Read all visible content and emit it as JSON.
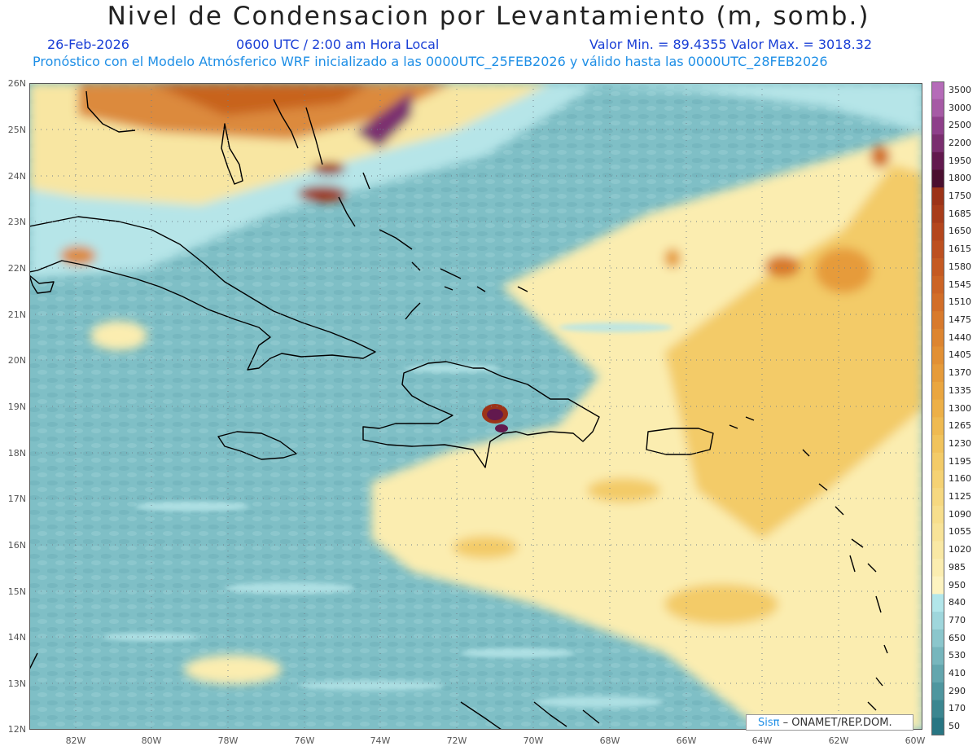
{
  "header": {
    "title": "Nivel de Condensacion por Levantamiento (m, somb.)",
    "date": "26-Feb-2026",
    "time": "0600 UTC / 2:00 am Hora Local",
    "minmax": "Valor Min. = 89.4355   Valor Max. = 3018.32",
    "forecast": "Pronóstico con el Modelo Atmósferico WRF inicializado a las 0000UTC_25FEB2026 y válido hasta las  0000UTC_28FEB2026"
  },
  "axes": {
    "lat_labels": [
      "26N",
      "25N",
      "24N",
      "23N",
      "22N",
      "21N",
      "20N",
      "19N",
      "18N",
      "17N",
      "16N",
      "15N",
      "14N",
      "13N",
      "12N"
    ],
    "lon_labels": [
      "82W",
      "80W",
      "78W",
      "76W",
      "74W",
      "72W",
      "70W",
      "68W",
      "66W",
      "64W",
      "62W",
      "60W"
    ]
  },
  "colorbar": {
    "labels": [
      "3500",
      "3000",
      "2500",
      "2200",
      "1950",
      "1800",
      "1750",
      "1685",
      "1650",
      "1615",
      "1580",
      "1545",
      "1510",
      "1475",
      "1440",
      "1405",
      "1370",
      "1335",
      "1300",
      "1265",
      "1230",
      "1195",
      "1160",
      "1125",
      "1090",
      "1055",
      "1020",
      "985",
      "950",
      "840",
      "770",
      "650",
      "530",
      "410",
      "290",
      "170",
      "50"
    ],
    "colors": [
      "#b56bb8",
      "#a65aa5",
      "#8e3f8a",
      "#7a2e6f",
      "#62194e",
      "#4a0f2f",
      "#9c3318",
      "#a83c1a",
      "#b4461d",
      "#bd5020",
      "#c55a22",
      "#cc6425",
      "#d26e28",
      "#d87a2c",
      "#dd8530",
      "#e29034",
      "#e69b3a",
      "#eaa640",
      "#edb048",
      "#efba52",
      "#f1c35c",
      "#f3cb68",
      "#f5d274",
      "#f6d880",
      "#f7de8c",
      "#f8e398",
      "#f9e8a4",
      "#fbedb0",
      "#fdf3c0",
      "#b2e6ea",
      "#9fd6dc",
      "#8bc6cc",
      "#77b6bd",
      "#63a6ae",
      "#4f969f",
      "#3b8690",
      "#287683"
    ],
    "ocean_color": "#7fbfc6"
  },
  "credit": {
    "sis": "Sisπ",
    "rest": " – ONAMET/REP.DOM."
  }
}
